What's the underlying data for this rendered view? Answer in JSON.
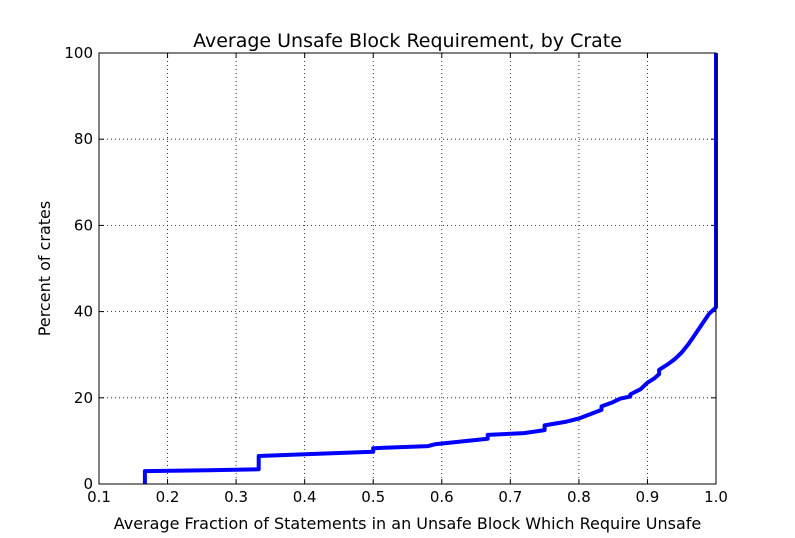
{
  "chart_data": {
    "type": "line",
    "title": "Average Unsafe Block Requirement, by Crate",
    "xlabel": "Average Fraction of Statements in an Unsafe Block Which Require Unsafe",
    "ylabel": "Percent of crates",
    "xlim": [
      0.1,
      1.0
    ],
    "ylim": [
      0,
      100
    ],
    "xticks": [
      0.1,
      0.2,
      0.3,
      0.4,
      0.5,
      0.6,
      0.7,
      0.8,
      0.9,
      1.0
    ],
    "xtick_labels": [
      "0.1",
      "0.2",
      "0.3",
      "0.4",
      "0.5",
      "0.6",
      "0.7",
      "0.8",
      "0.9",
      "1.0"
    ],
    "yticks": [
      0,
      20,
      40,
      60,
      80,
      100
    ],
    "ytick_labels": [
      "0",
      "20",
      "40",
      "60",
      "80",
      "100"
    ],
    "grid": true,
    "line_style": "step cumulative distribution",
    "series": [
      {
        "color": "#0000ff",
        "x": [
          0.167,
          0.167,
          0.26,
          0.333,
          0.333,
          0.42,
          0.5,
          0.5,
          0.58,
          0.59,
          0.66,
          0.667,
          0.667,
          0.72,
          0.75,
          0.75,
          0.78,
          0.8,
          0.82,
          0.833,
          0.833,
          0.85,
          0.86,
          0.875,
          0.875,
          0.89,
          0.9,
          0.91,
          0.917,
          0.917,
          0.93,
          0.94,
          0.95,
          0.96,
          0.97,
          0.98,
          0.99,
          1.0,
          1.0
        ],
        "y": [
          0,
          3.0,
          3.2,
          3.4,
          6.5,
          7.0,
          7.5,
          8.3,
          8.8,
          9.2,
          10.4,
          10.5,
          11.4,
          11.8,
          12.5,
          13.6,
          14.4,
          15.2,
          16.4,
          17.2,
          18.0,
          19.0,
          19.8,
          20.3,
          20.8,
          22.0,
          23.5,
          24.5,
          25.5,
          26.5,
          27.8,
          29.0,
          30.5,
          32.5,
          34.8,
          37.2,
          39.5,
          41.0,
          100
        ]
      }
    ]
  }
}
